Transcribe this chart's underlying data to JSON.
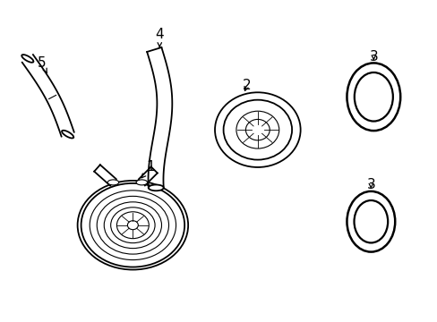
{
  "bg_color": "#ffffff",
  "line_color": "#000000",
  "lw_main": 1.3,
  "lw_thin": 0.8,
  "label_fontsize": 11,
  "figsize": [
    4.89,
    3.6
  ],
  "dpi": 100
}
